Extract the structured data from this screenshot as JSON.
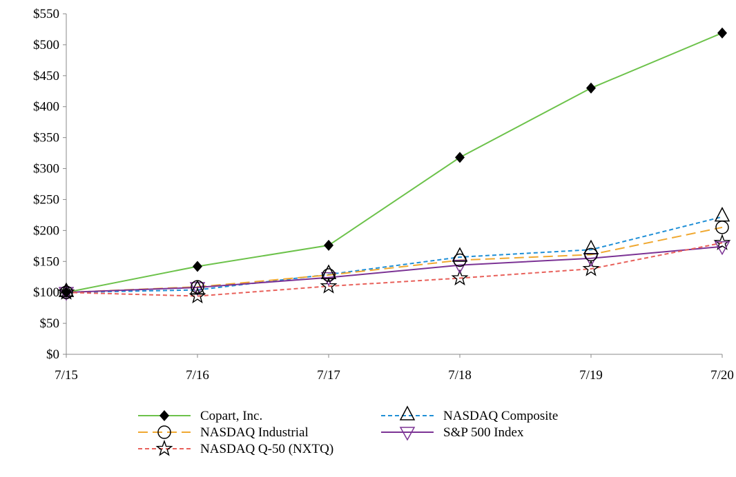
{
  "chart_data": {
    "type": "line",
    "title": "",
    "xlabel": "",
    "ylabel": "",
    "categories": [
      "7/15",
      "7/16",
      "7/17",
      "7/18",
      "7/19",
      "7/20"
    ],
    "ylim": [
      0,
      550
    ],
    "yticks": [
      0,
      50,
      100,
      150,
      200,
      250,
      300,
      350,
      400,
      450,
      500,
      550
    ],
    "ytick_labels": [
      "$0",
      "$50",
      "$100",
      "$150",
      "$200",
      "$250",
      "$300",
      "$350",
      "$400",
      "$450",
      "$500",
      "$550"
    ],
    "grid": false,
    "legend_position": "bottom",
    "series": [
      {
        "name": "Copart, Inc.",
        "color": "#6cc24a",
        "dash": "solid",
        "marker": "diamond",
        "values": [
          100,
          142,
          176,
          318,
          430,
          519
        ]
      },
      {
        "name": "NASDAQ Composite",
        "color": "#1f8fd6",
        "dash": "short-dash",
        "marker": "triangle-up",
        "values": [
          100,
          104,
          129,
          157,
          169,
          222
        ]
      },
      {
        "name": "NASDAQ Industrial",
        "color": "#f0a830",
        "dash": "long-dash",
        "marker": "circle",
        "values": [
          100,
          109,
          128,
          152,
          161,
          205
        ]
      },
      {
        "name": "S&P 500 Index",
        "color": "#7b3294",
        "dash": "solid",
        "marker": "triangle-down",
        "values": [
          100,
          108,
          124,
          144,
          155,
          174
        ]
      },
      {
        "name": "NASDAQ Q-50 (NXTQ)",
        "color": "#e8605a",
        "dash": "short-dash",
        "marker": "star",
        "values": [
          100,
          94,
          110,
          123,
          138,
          180
        ]
      }
    ]
  }
}
